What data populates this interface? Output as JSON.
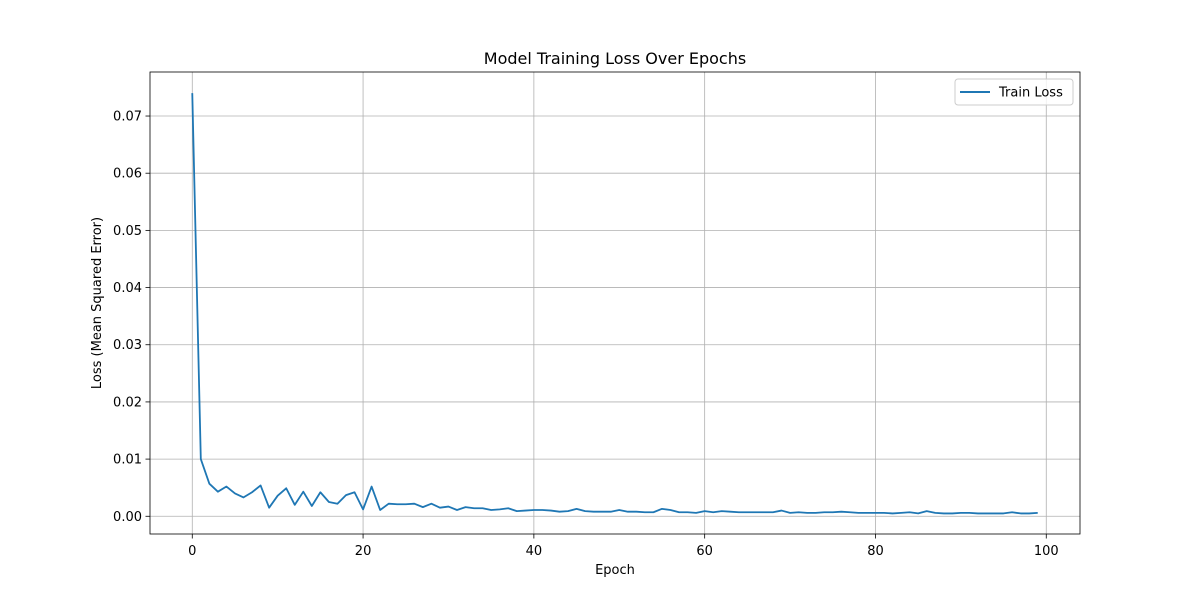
{
  "chart_data": {
    "type": "line",
    "title": "Model Training Loss Over Epochs",
    "xlabel": "Epoch",
    "ylabel": "Loss (Mean Squared Error)",
    "xlim": [
      -4.95,
      103.95
    ],
    "ylim": [
      -0.0031,
      0.0777
    ],
    "x_ticks": [
      0,
      20,
      40,
      60,
      80,
      100
    ],
    "y_ticks": [
      0.0,
      0.01,
      0.02,
      0.03,
      0.04,
      0.05,
      0.06,
      0.07
    ],
    "x_tick_labels": [
      "0",
      "20",
      "40",
      "60",
      "80",
      "100"
    ],
    "y_tick_labels": [
      "0.00",
      "0.01",
      "0.02",
      "0.03",
      "0.04",
      "0.05",
      "0.06",
      "0.07"
    ],
    "grid": true,
    "legend_position": "top-right",
    "series": [
      {
        "name": "Train Loss",
        "color": "#1f77b4",
        "x": [
          0,
          1,
          2,
          3,
          4,
          5,
          6,
          7,
          8,
          9,
          10,
          11,
          12,
          13,
          14,
          15,
          16,
          17,
          18,
          19,
          20,
          21,
          22,
          23,
          24,
          25,
          26,
          27,
          28,
          29,
          30,
          31,
          32,
          33,
          34,
          35,
          36,
          37,
          38,
          39,
          40,
          41,
          42,
          43,
          44,
          45,
          46,
          47,
          48,
          49,
          50,
          51,
          52,
          53,
          54,
          55,
          56,
          57,
          58,
          59,
          60,
          61,
          62,
          63,
          64,
          65,
          66,
          67,
          68,
          69,
          70,
          71,
          72,
          73,
          74,
          75,
          76,
          77,
          78,
          79,
          80,
          81,
          82,
          83,
          84,
          85,
          86,
          87,
          88,
          89,
          90,
          91,
          92,
          93,
          94,
          95,
          96,
          97,
          98,
          99
        ],
        "values": [
          0.074,
          0.01,
          0.0057,
          0.0043,
          0.0052,
          0.004,
          0.0033,
          0.0042,
          0.0054,
          0.0015,
          0.0036,
          0.0049,
          0.002,
          0.0043,
          0.0018,
          0.0042,
          0.0025,
          0.0022,
          0.0037,
          0.0042,
          0.0012,
          0.0052,
          0.0011,
          0.0022,
          0.0021,
          0.0021,
          0.0022,
          0.0016,
          0.0022,
          0.0015,
          0.0017,
          0.0011,
          0.0016,
          0.0014,
          0.0014,
          0.0011,
          0.0012,
          0.0014,
          0.0009,
          0.001,
          0.0011,
          0.0011,
          0.001,
          0.0008,
          0.0009,
          0.0013,
          0.0009,
          0.0008,
          0.0008,
          0.0008,
          0.0011,
          0.0008,
          0.0008,
          0.0007,
          0.0007,
          0.0013,
          0.0011,
          0.0007,
          0.0007,
          0.0006,
          0.0009,
          0.0007,
          0.0009,
          0.0008,
          0.0007,
          0.0007,
          0.0007,
          0.0007,
          0.0007,
          0.001,
          0.0006,
          0.0007,
          0.0006,
          0.0006,
          0.0007,
          0.0007,
          0.0008,
          0.0007,
          0.0006,
          0.0006,
          0.0006,
          0.0006,
          0.0005,
          0.0006,
          0.0007,
          0.0005,
          0.0009,
          0.0006,
          0.0005,
          0.0005,
          0.0006,
          0.0006,
          0.0005,
          0.0005,
          0.0005,
          0.0005,
          0.0007,
          0.0005,
          0.0005,
          0.0006
        ]
      }
    ]
  }
}
